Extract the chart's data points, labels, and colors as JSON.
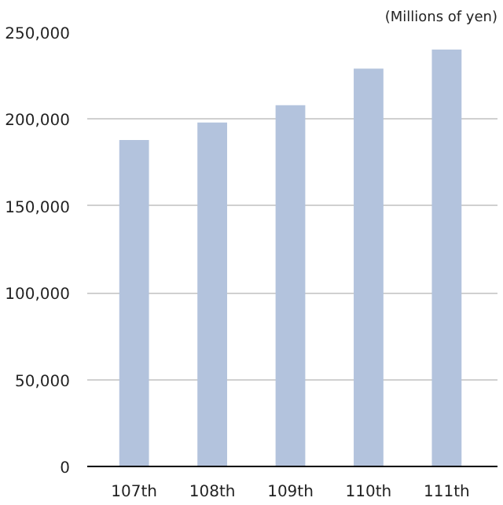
{
  "chart_data": {
    "type": "bar",
    "annotations": [
      "(Millions of yen)"
    ],
    "categories": [
      "107th",
      "108th",
      "109th",
      "110th",
      "111th"
    ],
    "values": [
      188000,
      198000,
      208000,
      229000,
      240000
    ],
    "color": "#b3c3dd",
    "ylim": [
      0,
      250000
    ],
    "yticks": [
      {
        "value": 0,
        "label": "0"
      },
      {
        "value": 50000,
        "label": "50,000"
      },
      {
        "value": 100000,
        "label": "100,000"
      },
      {
        "value": 150000,
        "label": "150,000"
      },
      {
        "value": 200000,
        "label": "200,000"
      },
      {
        "value": 250000,
        "label": "250,000"
      }
    ],
    "grid": "y"
  }
}
